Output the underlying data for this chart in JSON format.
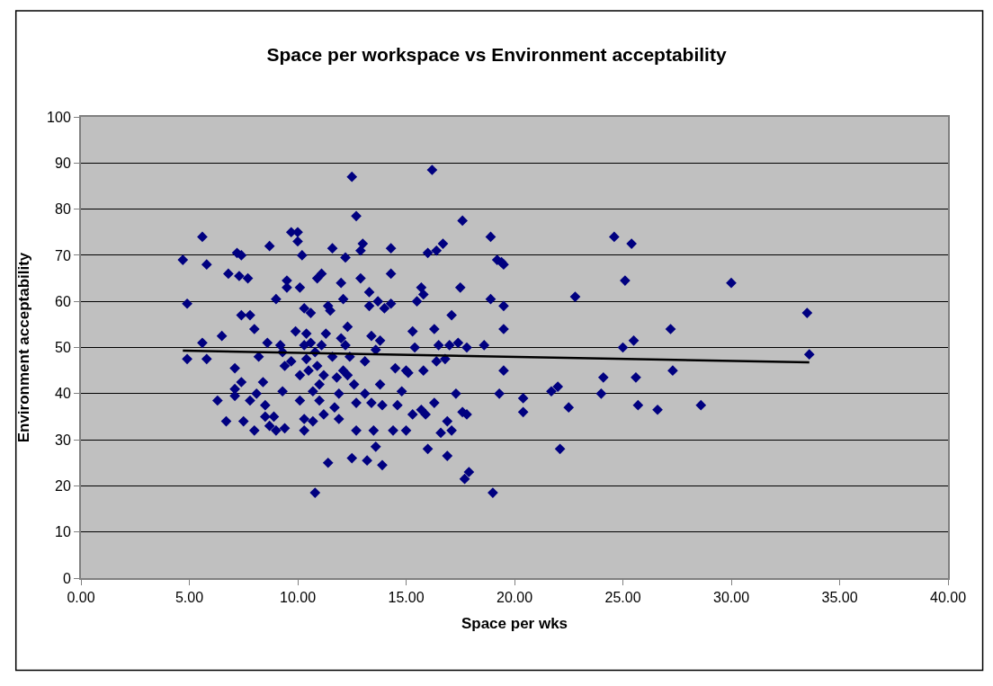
{
  "chart_data": {
    "type": "scatter",
    "title": "Space per workspace vs Environment acceptability",
    "xlabel": "Space per wks",
    "ylabel": "Environment acceptability",
    "xlim": [
      0,
      40
    ],
    "ylim": [
      0,
      100
    ],
    "xticks": [
      {
        "value": 0,
        "label": "0.00"
      },
      {
        "value": 5,
        "label": "5.00"
      },
      {
        "value": 10,
        "label": "10.00"
      },
      {
        "value": 15,
        "label": "15.00"
      },
      {
        "value": 20,
        "label": "20.00"
      },
      {
        "value": 25,
        "label": "25.00"
      },
      {
        "value": 30,
        "label": "30.00"
      },
      {
        "value": 35,
        "label": "35.00"
      },
      {
        "value": 40,
        "label": "40.00"
      }
    ],
    "yticks": [
      0,
      10,
      20,
      30,
      40,
      50,
      60,
      70,
      80,
      90,
      100
    ],
    "grid": "y",
    "marker": "diamond",
    "series": [
      {
        "color": "#000080",
        "x": [
          4.7,
          4.9,
          4.9,
          5.6,
          5.6,
          5.8,
          5.8,
          6.3,
          6.5,
          6.7,
          6.8,
          7.1,
          7.1,
          7.1,
          7.2,
          7.3,
          7.4,
          7.4,
          7.4,
          7.5,
          7.7,
          7.8,
          7.8,
          8.0,
          8.0,
          8.1,
          8.2,
          8.4,
          8.5,
          8.5,
          8.6,
          8.7,
          8.7,
          8.9,
          9.0,
          9.0,
          9.2,
          9.3,
          9.4,
          9.3,
          9.4,
          9.5,
          9.5,
          9.7,
          9.7,
          9.9,
          10.0,
          10.0,
          10.1,
          10.1,
          10.1,
          10.2,
          10.3,
          10.3,
          10.3,
          10.3,
          10.4,
          10.4,
          10.5,
          10.6,
          10.6,
          10.7,
          10.7,
          10.8,
          10.8,
          10.9,
          10.9,
          11.0,
          11.0,
          11.1,
          11.1,
          11.2,
          11.2,
          11.3,
          11.4,
          11.4,
          11.5,
          11.6,
          11.6,
          11.7,
          11.8,
          11.9,
          11.9,
          12.0,
          12.0,
          12.1,
          12.1,
          12.2,
          12.2,
          12.3,
          12.3,
          12.4,
          12.5,
          12.5,
          12.6,
          12.7,
          12.7,
          12.7,
          12.9,
          12.9,
          13.0,
          13.1,
          13.1,
          13.2,
          13.3,
          13.3,
          13.4,
          13.4,
          13.5,
          13.6,
          13.6,
          13.7,
          13.8,
          13.8,
          13.9,
          13.9,
          14.0,
          14.3,
          14.3,
          14.3,
          14.4,
          14.5,
          14.6,
          14.8,
          15.0,
          15.0,
          15.1,
          15.3,
          15.3,
          15.4,
          15.5,
          15.7,
          15.7,
          15.8,
          15.8,
          15.9,
          16.0,
          16.0,
          16.2,
          16.3,
          16.3,
          16.4,
          16.4,
          16.5,
          16.6,
          16.7,
          16.8,
          16.9,
          16.9,
          17.0,
          17.1,
          17.1,
          17.3,
          17.4,
          17.5,
          17.6,
          17.6,
          17.7,
          17.8,
          17.8,
          17.9,
          18.6,
          18.9,
          18.9,
          19.0,
          19.2,
          19.3,
          19.4,
          19.5,
          19.5,
          19.5,
          19.5,
          20.4,
          20.4,
          21.7,
          22.0,
          22.1,
          22.5,
          22.8,
          24.0,
          24.1,
          24.6,
          25.0,
          25.1,
          25.4,
          25.5,
          25.6,
          25.7,
          26.6,
          27.2,
          27.3,
          28.6,
          30.0,
          33.5,
          33.6
        ],
        "values": [
          69,
          59.5,
          47.5,
          74,
          51,
          68,
          47.5,
          38.5,
          52.5,
          34,
          66,
          45.5,
          41,
          39.5,
          70.5,
          65.5,
          70,
          57,
          42.5,
          34,
          65,
          57,
          38.5,
          54,
          32,
          40,
          48,
          42.5,
          37.5,
          35,
          51,
          72,
          33,
          35,
          60.5,
          32,
          50.5,
          49,
          46,
          40.5,
          32.5,
          64.5,
          63,
          47,
          75,
          53.5,
          75,
          73,
          63,
          44,
          38.5,
          70,
          58.5,
          50.5,
          34.5,
          32,
          53,
          47.5,
          45,
          57.5,
          51,
          40.5,
          34,
          49,
          18.5,
          65,
          46,
          42,
          38.5,
          66,
          50.5,
          44,
          35.5,
          53,
          59,
          25,
          58,
          48,
          71.5,
          37,
          43.5,
          40,
          34.5,
          64,
          52,
          60.5,
          45,
          69.5,
          50.5,
          54.5,
          44,
          48,
          87,
          26,
          42,
          78.5,
          38,
          32,
          71,
          65,
          72.5,
          47,
          40,
          25.5,
          62,
          59,
          52.5,
          38,
          32,
          49.5,
          28.5,
          60,
          51.5,
          42,
          37.5,
          24.5,
          58.5,
          71.5,
          66,
          59.5,
          32,
          45.5,
          37.5,
          40.5,
          45,
          32,
          44.5,
          53.5,
          35.5,
          50,
          60,
          63,
          36.5,
          61.5,
          45,
          35.5,
          70.5,
          28,
          88.5,
          38,
          54,
          71,
          47,
          50.5,
          31.5,
          72.5,
          47.5,
          26.5,
          34,
          50.5,
          57,
          32,
          40,
          51,
          63,
          77.5,
          36,
          21.5,
          35.5,
          50,
          23,
          50.5,
          74,
          60.5,
          18.5,
          69,
          40,
          68.5,
          68,
          59,
          54,
          45,
          39,
          36,
          40.5,
          41.5,
          28,
          37,
          61,
          40,
          43.5,
          74,
          50,
          64.5,
          72.5,
          51.5,
          43.5,
          37.5,
          36.5,
          54,
          45,
          37.5,
          64,
          57.5,
          48.5
        ]
      },
      {
        "type": "line",
        "color": "#000000",
        "marker": "none",
        "line_style": "solid",
        "x": [
          4.7,
          33.6
        ],
        "values": [
          49.3,
          46.8
        ]
      }
    ]
  }
}
